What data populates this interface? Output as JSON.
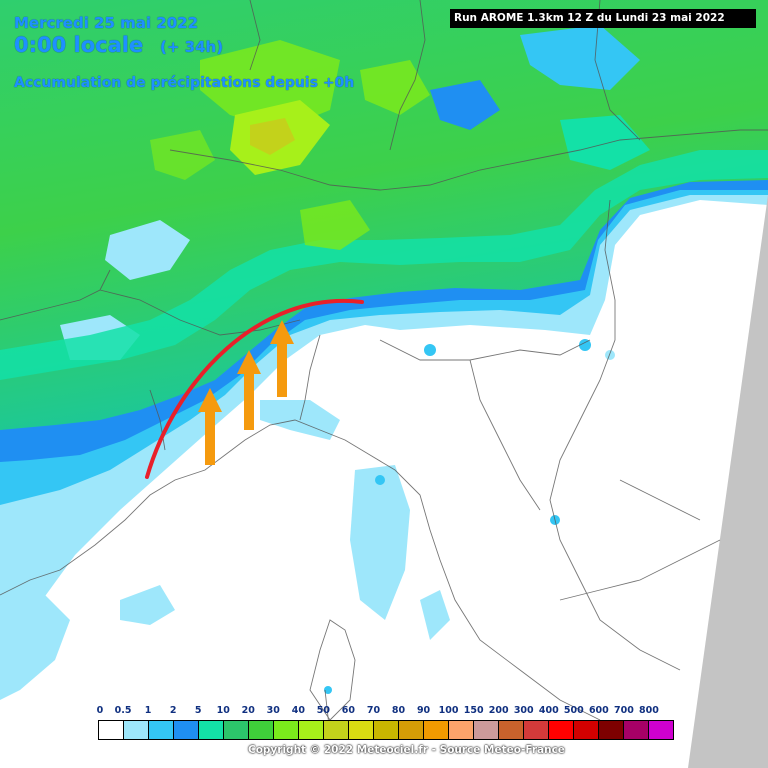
{
  "header": {
    "date": "Mercredi 25 mai 2022",
    "time": "0:00 locale",
    "lead": "(+ 34h)",
    "description": "Accumulation de précipitations depuis +0h"
  },
  "run_info": "Run AROME 1.3km 12 Z du Lundi 23 mai 2022",
  "legend": {
    "labels": [
      "0",
      "0.5",
      "1",
      "2",
      "5",
      "10",
      "20",
      "30",
      "40",
      "50",
      "60",
      "70",
      "80",
      "90",
      "100",
      "150",
      "200",
      "300",
      "400",
      "500",
      "600",
      "700",
      "800"
    ],
    "colors": [
      "#ffffff",
      "#9ee7fb",
      "#34c6f4",
      "#1f8ff2",
      "#13e1a7",
      "#2cc56b",
      "#3fd03a",
      "#7bea1c",
      "#a7f01a",
      "#c3d21b",
      "#dadd12",
      "#c9b600",
      "#d59d06",
      "#f19a00",
      "#fca46b",
      "#cd9a9a",
      "#c9622c",
      "#d33a3a",
      "#ff0000",
      "#d30000",
      "#7d0000",
      "#a60066",
      "#cf00cf"
    ]
  },
  "copyright": "Copyright © 2022 Meteociel.fr - Source Meteo-France",
  "annotations": {
    "front_color": "#e8202a",
    "arrow_color": "#f59a0e"
  },
  "colors": {
    "missing_data": "#c4c4c4",
    "borders": "#555555"
  }
}
